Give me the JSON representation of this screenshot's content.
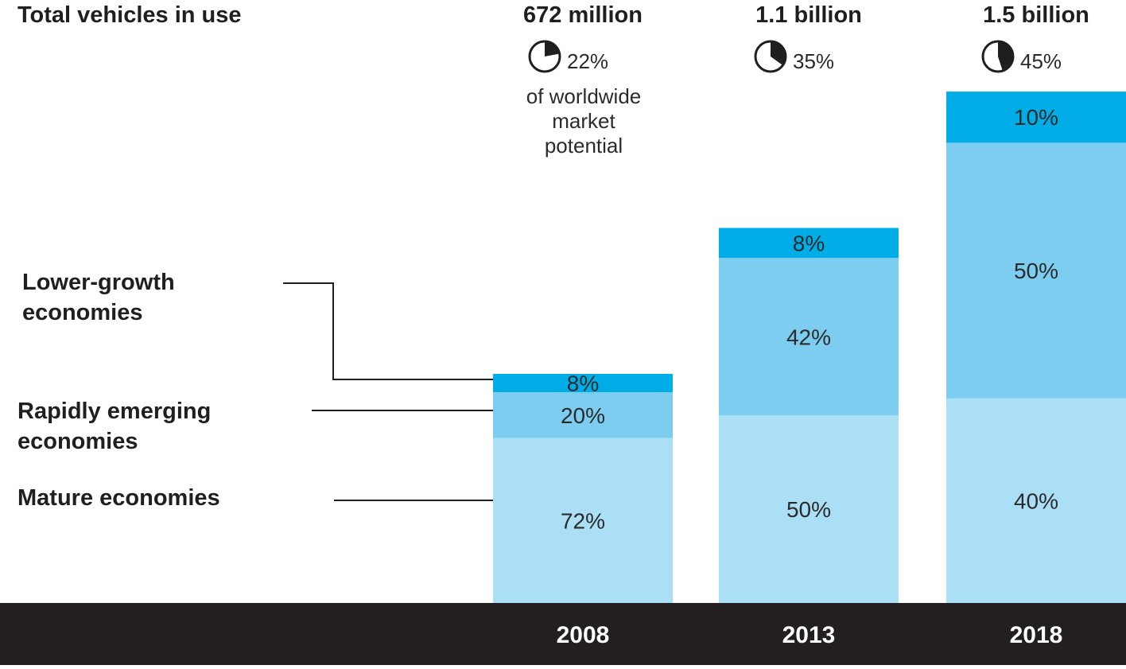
{
  "chart_data": {
    "type": "bar",
    "title": "Total vehicles in use",
    "categories": [
      "2008",
      "2013",
      "2018"
    ],
    "totals": [
      "672 million",
      "1.1 billion",
      "1.5 billion"
    ],
    "total_values_millions": [
      672,
      1100,
      1500
    ],
    "market_potential_share": [
      22,
      35,
      45
    ],
    "market_potential_labels": [
      "22%",
      "35%",
      "45%"
    ],
    "market_potential_caption": [
      "of worldwide",
      "market",
      "potential"
    ],
    "stacking_order": "bottom-to-top",
    "series": [
      {
        "name": "Mature economies",
        "values": [
          72,
          50,
          40
        ],
        "labels": [
          "72%",
          "50%",
          "40%"
        ],
        "color": "#aadff6"
      },
      {
        "name": "Rapidly emerging economies",
        "values": [
          20,
          42,
          50
        ],
        "labels": [
          "20%",
          "42%",
          "50%"
        ],
        "color": "#7ccdf0"
      },
      {
        "name": "Lower-growth economies",
        "values": [
          8,
          8,
          10
        ],
        "labels": [
          "8%",
          "8%",
          "10%"
        ],
        "color": "#00ade6"
      }
    ],
    "legend_labels": [
      [
        "Lower-growth",
        "economies"
      ],
      [
        "Rapidly emerging",
        "economies"
      ],
      [
        "Mature economies"
      ]
    ],
    "legend_placement": "left, with leader lines",
    "colors": {
      "axis_band": "#231f20",
      "axis_text": "#ffffff",
      "label_text": "#2b2b2b",
      "leader_line": "#1f1f1f",
      "pie_fill": "#1f1f1f"
    },
    "grid": false
  }
}
